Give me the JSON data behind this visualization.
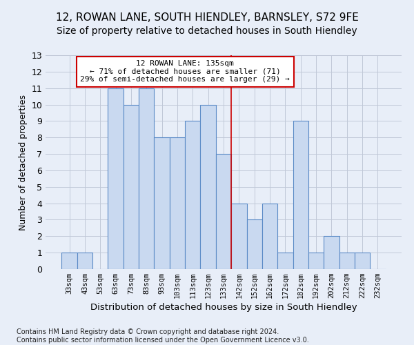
{
  "title_line1": "12, ROWAN LANE, SOUTH HIENDLEY, BARNSLEY, S72 9FE",
  "title_line2": "Size of property relative to detached houses in South Hiendley",
  "xlabel": "Distribution of detached houses by size in South Hiendley",
  "ylabel": "Number of detached properties",
  "footnote": "Contains HM Land Registry data © Crown copyright and database right 2024.\nContains public sector information licensed under the Open Government Licence v3.0.",
  "categories": [
    "33sqm",
    "43sqm",
    "53sqm",
    "63sqm",
    "73sqm",
    "83sqm",
    "93sqm",
    "103sqm",
    "113sqm",
    "123sqm",
    "133sqm",
    "142sqm",
    "152sqm",
    "162sqm",
    "172sqm",
    "182sqm",
    "192sqm",
    "202sqm",
    "212sqm",
    "222sqm",
    "232sqm"
  ],
  "values": [
    1,
    1,
    0,
    11,
    10,
    11,
    8,
    8,
    9,
    10,
    7,
    4,
    3,
    4,
    1,
    9,
    1,
    2,
    1,
    1,
    0
  ],
  "bar_color": "#c9d9f0",
  "bar_edge_color": "#5a8ac6",
  "bar_edge_width": 0.8,
  "grid_color": "#c0c8d8",
  "background_color": "#e8eef8",
  "vline_x_index": 11,
  "vline_color": "#cc0000",
  "annotation_text": "12 ROWAN LANE: 135sqm\n← 71% of detached houses are smaller (71)\n29% of semi-detached houses are larger (29) →",
  "ylim": [
    0,
    13
  ],
  "yticks": [
    0,
    1,
    2,
    3,
    4,
    5,
    6,
    7,
    8,
    9,
    10,
    11,
    12,
    13
  ],
  "title1_fontsize": 11,
  "title2_fontsize": 10,
  "xlabel_fontsize": 9.5,
  "ylabel_fontsize": 9,
  "footnote_fontsize": 7,
  "annotation_fontsize": 8
}
